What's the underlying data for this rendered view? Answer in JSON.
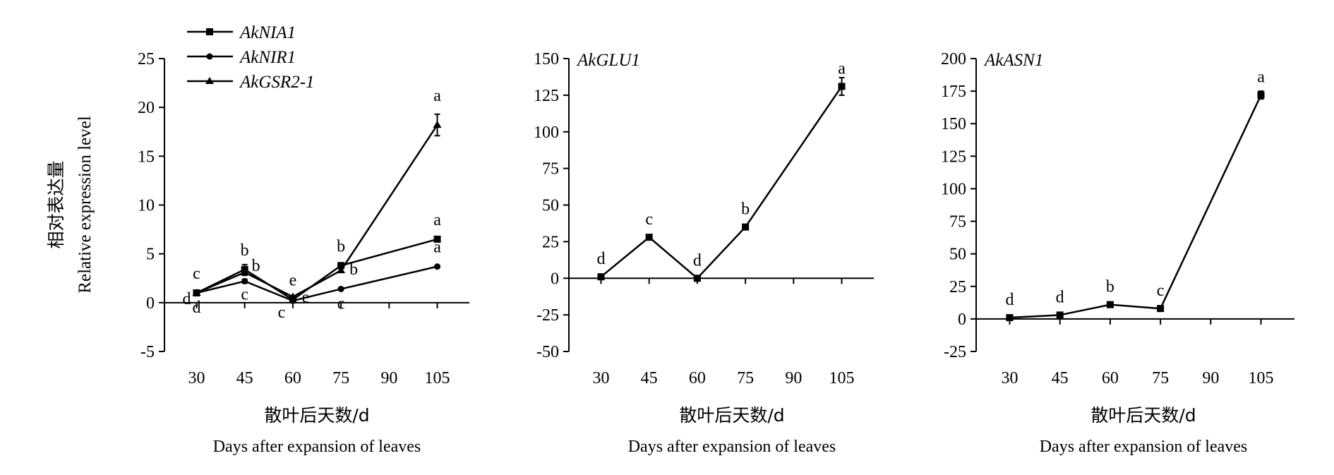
{
  "chart_data": [
    {
      "type": "line",
      "title": "",
      "xlabel_cn": "散叶后天数/d",
      "xlabel_en": "Days after expansion of leaves",
      "ylabel_cn": "相对表达量",
      "ylabel_en": "Relative expression level",
      "x": [
        30,
        45,
        60,
        75,
        105
      ],
      "xticks": [
        "30",
        "45",
        "60",
        "75",
        "90",
        "105"
      ],
      "xlim": [
        20,
        115
      ],
      "ylim": [
        -5,
        25
      ],
      "yticks": [
        "-5",
        "0",
        "5",
        "10",
        "15",
        "20",
        "25"
      ],
      "legend_position": "top-left",
      "series": [
        {
          "name": "AkNIA1",
          "marker": "square",
          "values": [
            1,
            3.4,
            0.3,
            3.8,
            6.5
          ],
          "errors": [
            0.1,
            0.5,
            0.1,
            0.2,
            0.2
          ],
          "sig": [
            "d",
            "b",
            "e",
            "b",
            "a"
          ]
        },
        {
          "name": "AkNIR1",
          "marker": "circle",
          "values": [
            1,
            2.2,
            0.2,
            1.4,
            3.7
          ],
          "errors": [
            0.1,
            0.2,
            0.05,
            0.1,
            0.1
          ],
          "sig": [
            "d",
            "c",
            "c",
            "c",
            "a"
          ]
        },
        {
          "name": "AkGSR2-1",
          "marker": "triangle",
          "values": [
            1,
            3.1,
            0.6,
            3.3,
            18.2
          ],
          "errors": [
            0.1,
            0.3,
            0.1,
            0.2,
            1.1
          ],
          "sig": [
            "c",
            "b",
            "e",
            "b",
            "a"
          ]
        }
      ]
    },
    {
      "type": "line",
      "title": "AkGLU1",
      "xlabel_cn": "散叶后天数/d",
      "xlabel_en": "Days after expansion of leaves",
      "x": [
        30,
        45,
        60,
        75,
        105
      ],
      "xticks": [
        "30",
        "45",
        "60",
        "75",
        "90",
        "105"
      ],
      "xlim": [
        20,
        115
      ],
      "ylim": [
        -50,
        150
      ],
      "yticks": [
        "-50",
        "-25",
        "0",
        "25",
        "50",
        "75",
        "100",
        "125",
        "150"
      ],
      "series": [
        {
          "values": [
            1,
            28,
            0,
            35,
            131
          ],
          "errors": [
            0.5,
            1,
            0.5,
            1,
            6
          ],
          "sig": [
            "d",
            "c",
            "d",
            "b",
            "a"
          ]
        }
      ]
    },
    {
      "type": "line",
      "title": "AkASN1",
      "xlabel_cn": "散叶后天数/d",
      "xlabel_en": "Days after expansion of leaves",
      "x": [
        30,
        45,
        60,
        75,
        105
      ],
      "xticks": [
        "30",
        "45",
        "60",
        "75",
        "90",
        "105"
      ],
      "xlim": [
        20,
        115
      ],
      "ylim": [
        -25,
        200
      ],
      "yticks": [
        "-25",
        "0",
        "25",
        "50",
        "75",
        "100",
        "125",
        "150",
        "175",
        "200"
      ],
      "series": [
        {
          "values": [
            1,
            3,
            11,
            8,
            172
          ],
          "errors": [
            0.5,
            0.5,
            1,
            1,
            3
          ],
          "sig": [
            "d",
            "d",
            "b",
            "c",
            "a"
          ]
        }
      ]
    }
  ]
}
